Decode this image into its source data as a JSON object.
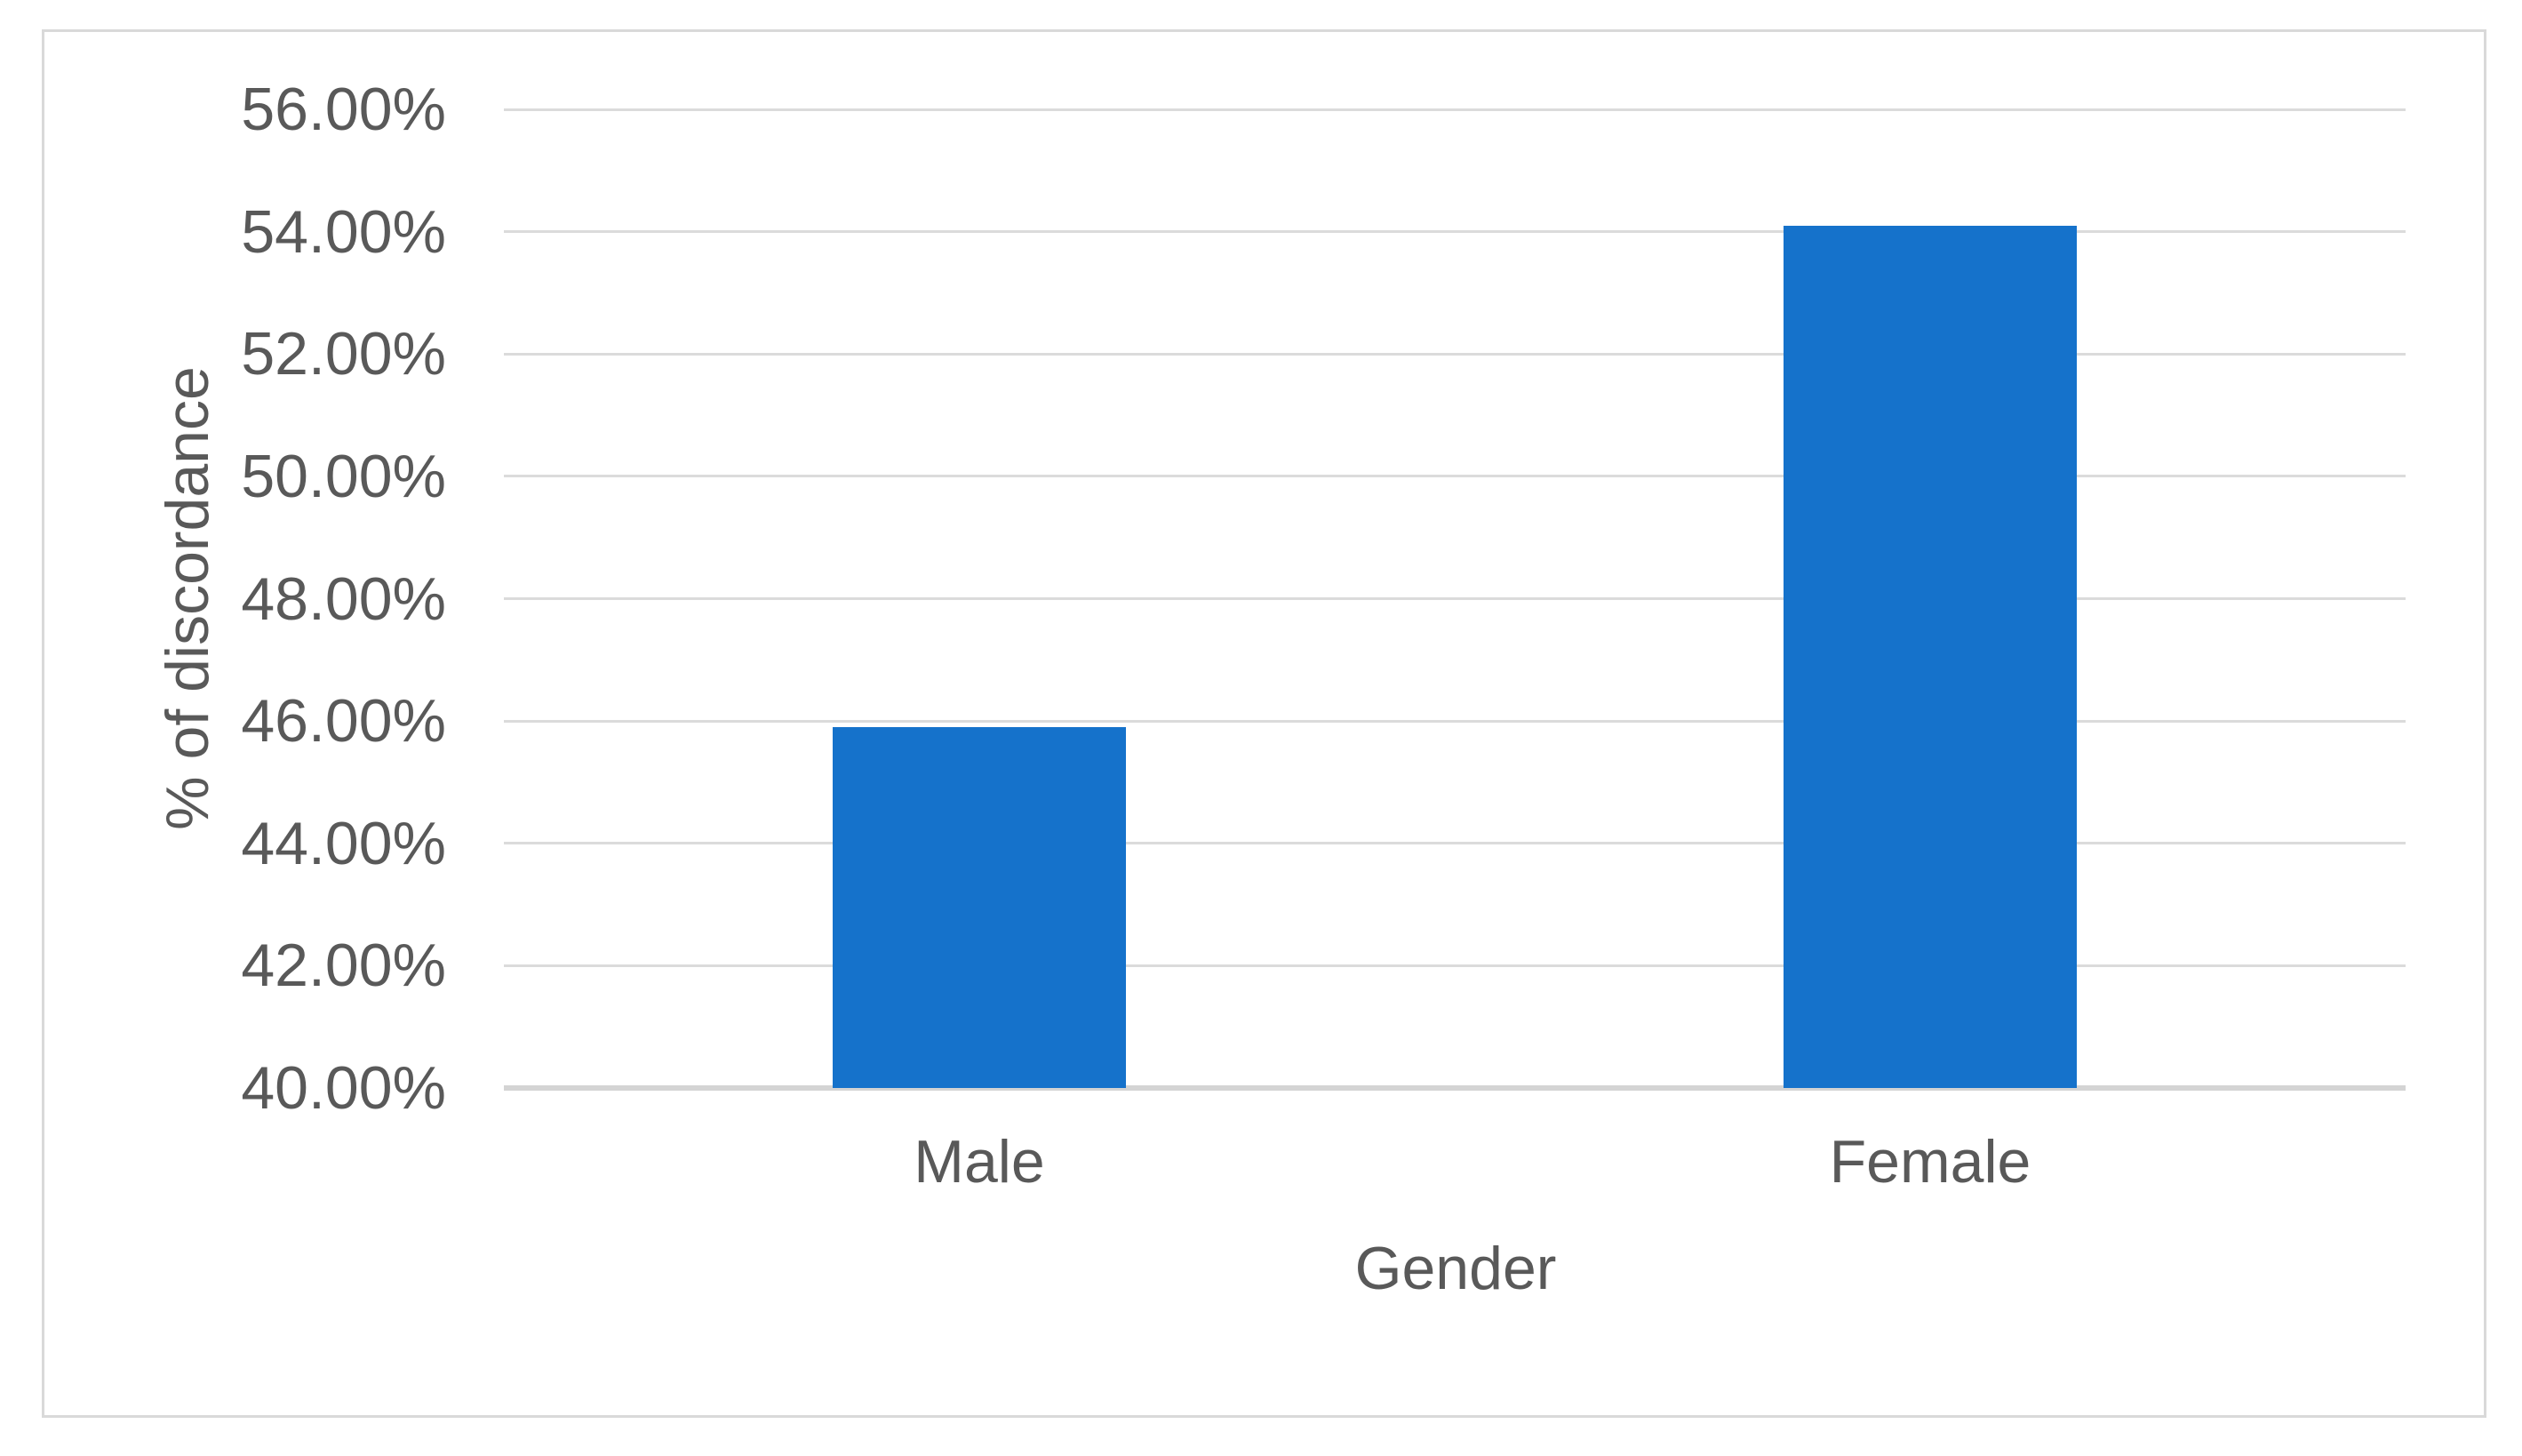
{
  "figure": {
    "background": "#FFFFFF",
    "frame_border_color": "#D9D9D9"
  },
  "chart_data": {
    "type": "bar",
    "title": "",
    "categories": [
      "Male",
      "Female"
    ],
    "values": [
      45.9,
      54.1
    ],
    "value_unit": "percent",
    "xlabel": "Gender",
    "ylabel": "% of discordance",
    "ylim": [
      40,
      56
    ],
    "ytick_step": 2,
    "ytick_labels": [
      "40.00%",
      "42.00%",
      "44.00%",
      "46.00%",
      "48.00%",
      "50.00%",
      "52.00%",
      "54.00%",
      "56.00%"
    ],
    "grid": "horizontal",
    "legend": "none",
    "bar_color": "#1572CB",
    "gridline_color": "#DBDBDB",
    "axis_line_color": "#D4D4D4",
    "text_color": "#595959"
  }
}
